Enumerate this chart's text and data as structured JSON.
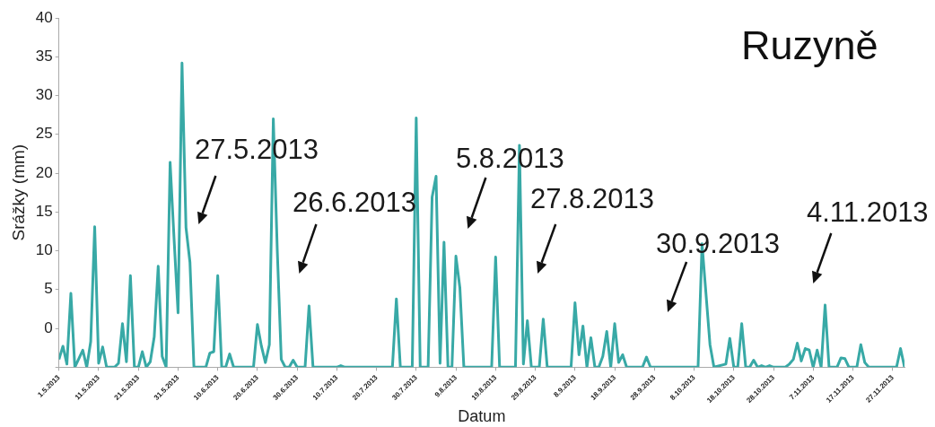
{
  "chart_data": {
    "type": "line",
    "title": "Ruzyně",
    "xlabel": "Datum",
    "ylabel": "Srážky (mm)",
    "xlim": [
      "2013-05-01",
      "2013-11-30"
    ],
    "xticks": [
      {
        "value": "2013-05-01",
        "label": "1.5.2013"
      },
      {
        "value": "2013-05-11",
        "label": "11.5.2013"
      },
      {
        "value": "2013-05-21",
        "label": "21.5.2013"
      },
      {
        "value": "2013-05-31",
        "label": "31.5.2013"
      },
      {
        "value": "2013-06-10",
        "label": "10.6.2013"
      },
      {
        "value": "2013-06-20",
        "label": "20.6.2013"
      },
      {
        "value": "2013-06-30",
        "label": "30.6.2013"
      },
      {
        "value": "2013-07-10",
        "label": "10.7.2013"
      },
      {
        "value": "2013-07-20",
        "label": "20.7.2013"
      },
      {
        "value": "2013-07-30",
        "label": "30.7.2013"
      },
      {
        "value": "2013-08-09",
        "label": "9.8.2013"
      },
      {
        "value": "2013-08-19",
        "label": "19.8.2013"
      },
      {
        "value": "2013-08-29",
        "label": "29.8.2013"
      },
      {
        "value": "2013-09-08",
        "label": "8.9.2013"
      },
      {
        "value": "2013-09-18",
        "label": "18.9.2013"
      },
      {
        "value": "2013-09-28",
        "label": "28.9.2013"
      },
      {
        "value": "2013-10-08",
        "label": "8.10.2013"
      },
      {
        "value": "2013-10-18",
        "label": "18.10.2013"
      },
      {
        "value": "2013-10-28",
        "label": "28.10.2013"
      },
      {
        "value": "2013-11-07",
        "label": "7.11.2013"
      },
      {
        "value": "2013-11-17",
        "label": "17.11.2013"
      },
      {
        "value": "2013-11-27",
        "label": "27.11.2013"
      }
    ],
    "ylim": [
      -5,
      40
    ],
    "yticks": [
      {
        "value": -5,
        "label": null
      },
      0,
      5,
      10,
      15,
      20,
      25,
      30,
      35,
      40
    ],
    "grid": false,
    "legend": false,
    "annotations": [
      "27.5.2013",
      "26.6.2013",
      "5.8.2013",
      "27.8.2013",
      "30.9.2013",
      "4.11.2013"
    ],
    "series": [
      {
        "color": "#38a9a6",
        "x": [
          "2013-05-01",
          "2013-05-02",
          "2013-05-03",
          "2013-05-04",
          "2013-05-05",
          "2013-05-07",
          "2013-05-08",
          "2013-05-09",
          "2013-05-10",
          "2013-05-11",
          "2013-05-12",
          "2013-05-13",
          "2013-05-15",
          "2013-05-16",
          "2013-05-17",
          "2013-05-18",
          "2013-05-19",
          "2013-05-20",
          "2013-05-21",
          "2013-05-22",
          "2013-05-23",
          "2013-05-24",
          "2013-05-25",
          "2013-05-26",
          "2013-05-27",
          "2013-05-28",
          "2013-05-29",
          "2013-05-30",
          "2013-05-31",
          "2013-06-01",
          "2013-06-02",
          "2013-06-03",
          "2013-06-04",
          "2013-06-07",
          "2013-06-08",
          "2013-06-09",
          "2013-06-10",
          "2013-06-11",
          "2013-06-12",
          "2013-06-13",
          "2013-06-14",
          "2013-06-19",
          "2013-06-20",
          "2013-06-21",
          "2013-06-22",
          "2013-06-23",
          "2013-06-24",
          "2013-06-25",
          "2013-06-26",
          "2013-06-27",
          "2013-06-28",
          "2013-06-29",
          "2013-06-30",
          "2013-07-02",
          "2013-07-03",
          "2013-07-04",
          "2013-07-10",
          "2013-07-11",
          "2013-07-12",
          "2013-07-24",
          "2013-07-25",
          "2013-07-26",
          "2013-07-29",
          "2013-07-30",
          "2013-07-31",
          "2013-08-02",
          "2013-08-03",
          "2013-08-04",
          "2013-08-05",
          "2013-08-06",
          "2013-08-07",
          "2013-08-08",
          "2013-08-09",
          "2013-08-10",
          "2013-08-11",
          "2013-08-18",
          "2013-08-19",
          "2013-08-20",
          "2013-08-24",
          "2013-08-25",
          "2013-08-26",
          "2013-08-27",
          "2013-08-28",
          "2013-08-30",
          "2013-08-31",
          "2013-09-01",
          "2013-09-07",
          "2013-09-08",
          "2013-09-09",
          "2013-09-10",
          "2013-09-11",
          "2013-09-12",
          "2013-09-13",
          "2013-09-14",
          "2013-09-15",
          "2013-09-16",
          "2013-09-17",
          "2013-09-18",
          "2013-09-19",
          "2013-09-20",
          "2013-09-21",
          "2013-09-25",
          "2013-09-26",
          "2013-09-27",
          "2013-10-09",
          "2013-10-10",
          "2013-10-11",
          "2013-10-12",
          "2013-10-13",
          "2013-10-16",
          "2013-10-17",
          "2013-10-18",
          "2013-10-19",
          "2013-10-20",
          "2013-10-21",
          "2013-10-22",
          "2013-10-23",
          "2013-10-24",
          "2013-10-25",
          "2013-10-26",
          "2013-10-27",
          "2013-10-28",
          "2013-10-31",
          "2013-11-01",
          "2013-11-02",
          "2013-11-03",
          "2013-11-04",
          "2013-11-05",
          "2013-11-06",
          "2013-11-07",
          "2013-11-08",
          "2013-11-09",
          "2013-11-10",
          "2013-11-11",
          "2013-11-13",
          "2013-11-14",
          "2013-11-15",
          "2013-11-16",
          "2013-11-18",
          "2013-11-19",
          "2013-11-20",
          "2013-11-21",
          "2013-11-28",
          "2013-11-29",
          "2013-11-30"
        ],
        "values": [
          -4.0,
          -2.3,
          -4.6,
          4.5,
          -5,
          -2.8,
          -5,
          -1.7,
          13.1,
          -4.5,
          -2.4,
          -5,
          -5,
          -4.5,
          0.6,
          -4.3,
          6.8,
          -5,
          -5,
          -3.0,
          -5,
          -4.3,
          -1.1,
          8.0,
          -3.6,
          -5,
          21.4,
          11.5,
          2.0,
          34.2,
          13.0,
          8.5,
          -5,
          -5,
          -3.2,
          -3.0,
          6.8,
          -5,
          -5,
          -3.3,
          -5,
          -5,
          0.5,
          -2.3,
          -4.4,
          -2.1,
          27.0,
          10.0,
          -4.0,
          -5,
          -5,
          -4.1,
          -5,
          -5,
          2.9,
          -5,
          -5,
          -4.8,
          -5,
          -5,
          3.8,
          -5,
          -5,
          27.1,
          -5,
          -5,
          16.9,
          19.6,
          -4.5,
          11.1,
          -5,
          -5,
          9.3,
          5.2,
          -5,
          -5,
          9.2,
          -5,
          -5,
          23.6,
          -4.6,
          1.0,
          -5,
          -5,
          1.2,
          -5,
          -5,
          3.3,
          -3.4,
          0.3,
          -5,
          -1.2,
          -5,
          -5,
          -3.6,
          -0.4,
          -5,
          0.6,
          -4.4,
          -3.4,
          -5,
          -5,
          -3.7,
          -5,
          -5,
          10.9,
          4.4,
          -2.1,
          -5,
          -4.6,
          -1.3,
          -5,
          -5,
          0.6,
          -5,
          -5,
          -4.1,
          -5,
          -4.8,
          -5,
          -4.8,
          -5,
          -5,
          -4.6,
          -4.0,
          -1.9,
          -4.2,
          -2.6,
          -2.8,
          -5,
          -2.8,
          -5,
          3.0,
          -5,
          -5,
          -3.8,
          -3.9,
          -5,
          -5,
          -2.1,
          -4.4,
          -5,
          -5,
          -2.6,
          -5
        ]
      }
    ]
  }
}
